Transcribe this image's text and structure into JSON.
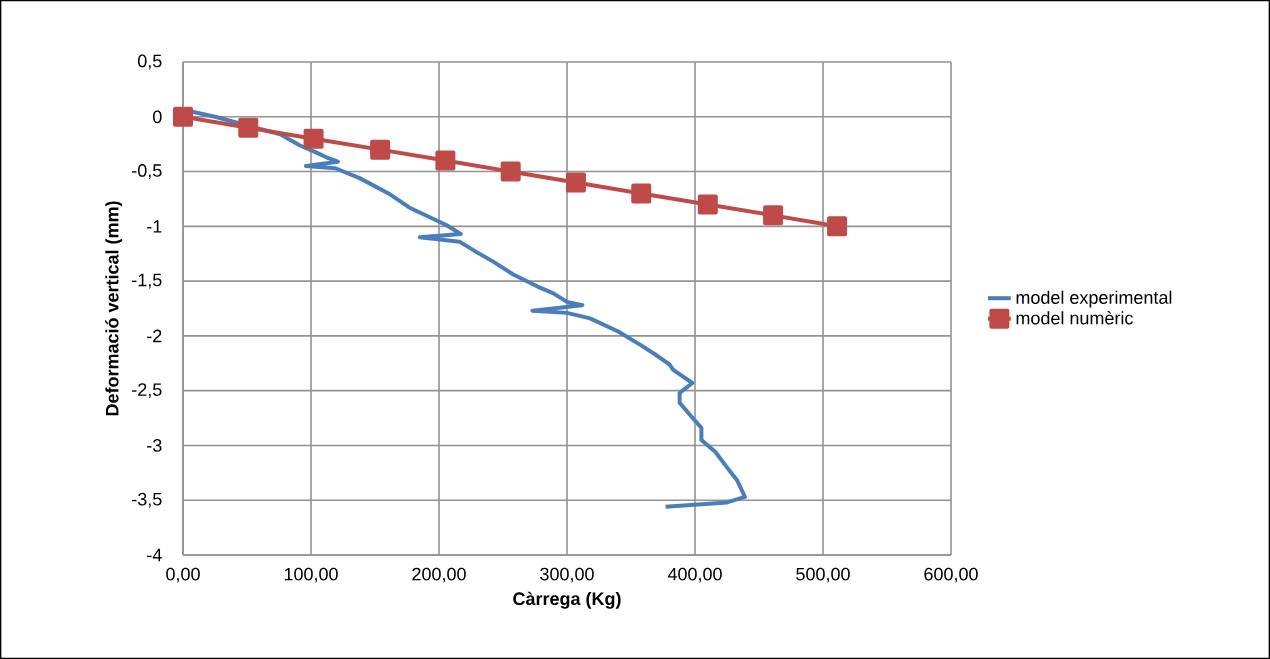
{
  "chart_data": {
    "type": "line",
    "xlabel": "Càrrega (Kg)",
    "ylabel": "Deformació vertical (mm)",
    "xlim": [
      0,
      600
    ],
    "ylim": [
      -4,
      0.5
    ],
    "xticks": [
      {
        "value": 0,
        "label": "0,00"
      },
      {
        "value": 100,
        "label": "100,00"
      },
      {
        "value": 200,
        "label": "200,00"
      },
      {
        "value": 300,
        "label": "300,00"
      },
      {
        "value": 400,
        "label": "400,00"
      },
      {
        "value": 500,
        "label": "500,00"
      },
      {
        "value": 600,
        "label": "600,00"
      }
    ],
    "yticks": [
      {
        "value": 0.5,
        "label": "0,5"
      },
      0,
      {
        "value": -0.5,
        "label": "-0,5"
      },
      -1,
      {
        "value": -1.5,
        "label": "-1,5"
      },
      -2,
      {
        "value": -2.5,
        "label": "-2,5"
      },
      -3,
      {
        "value": -3.5,
        "label": "-3,5"
      },
      -4
    ],
    "grid": true,
    "legend": "right",
    "series": [
      {
        "name": "model experimental",
        "color": "#4a7ebb",
        "marker": "none",
        "x": [
          2,
          25,
          52,
          76,
          91,
          103,
          112,
          121,
          96,
          119,
          138,
          162,
          177,
          197,
          206,
          217,
          185,
          216,
          230,
          242,
          258,
          277,
          289,
          300,
          312,
          273,
          300,
          318,
          340,
          357,
          369,
          380,
          383,
          398,
          388,
          388,
          396,
          405,
          405,
          416,
          425,
          433,
          439,
          425,
          377
        ],
        "values": [
          0.06,
          0,
          null,
          -0.16,
          -0.26,
          -0.32,
          -0.37,
          -0.41,
          -0.45,
          -0.47,
          -0.56,
          -0.71,
          -0.83,
          -0.94,
          -0.99,
          -1.07,
          -1.1,
          -1.14,
          -1.24,
          -1.32,
          -1.44,
          -1.55,
          -1.61,
          -1.69,
          -1.72,
          -1.77,
          -1.79,
          -1.84,
          -1.96,
          -2.08,
          -2.17,
          -2.26,
          -2.31,
          -2.43,
          -2.52,
          -2.61,
          -2.72,
          -2.84,
          -2.95,
          -3.06,
          -3.2,
          -3.32,
          -3.47,
          -3.52,
          -3.56
        ]
      },
      {
        "name": "model numèric",
        "color": "#be4b48",
        "marker": "square",
        "x": [
          0,
          51,
          102,
          154,
          205,
          256,
          307,
          358,
          410,
          461,
          511
        ],
        "values": [
          0,
          -0.1,
          -0.2,
          -0.3,
          -0.4,
          -0.5,
          -0.6,
          -0.7,
          -0.8,
          -0.9,
          -1
        ]
      }
    ]
  }
}
